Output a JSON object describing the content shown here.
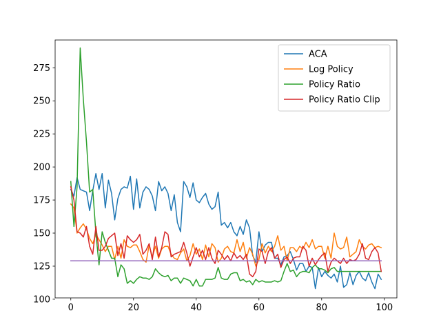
{
  "chart_data": {
    "type": "line",
    "title": "",
    "xlabel": "",
    "ylabel": "",
    "xlim": [
      -5,
      104
    ],
    "ylim": [
      101,
      296
    ],
    "xticks": [
      0,
      20,
      40,
      60,
      80,
      100
    ],
    "yticks": [
      100,
      125,
      150,
      175,
      200,
      225,
      250,
      275
    ],
    "grid": false,
    "legend_position": "top-right",
    "x": [
      0,
      1,
      2,
      3,
      4,
      5,
      6,
      7,
      8,
      9,
      10,
      11,
      12,
      13,
      14,
      15,
      16,
      17,
      18,
      19,
      20,
      21,
      22,
      23,
      24,
      25,
      26,
      27,
      28,
      29,
      30,
      31,
      32,
      33,
      34,
      35,
      36,
      37,
      38,
      39,
      40,
      41,
      42,
      43,
      44,
      45,
      46,
      47,
      48,
      49,
      50,
      51,
      52,
      53,
      54,
      55,
      56,
      57,
      58,
      59,
      60,
      61,
      62,
      63,
      64,
      65,
      66,
      67,
      68,
      69,
      70,
      71,
      72,
      73,
      74,
      75,
      76,
      77,
      78,
      79,
      80,
      81,
      82,
      83,
      84,
      85,
      86,
      87,
      88,
      89,
      90,
      91,
      92,
      93,
      94,
      95,
      96,
      97,
      98,
      99
    ],
    "series": [
      {
        "name": "ACA",
        "color": "#1f77b4",
        "values": [
          183,
          178,
          192,
          183,
          182,
          181,
          167,
          182,
          195,
          183,
          195,
          169,
          190,
          180,
          160,
          176,
          183,
          185,
          184,
          193,
          168,
          191,
          169,
          181,
          185,
          183,
          178,
          167,
          189,
          182,
          185,
          180,
          167,
          179,
          158,
          151,
          189,
          185,
          177,
          188,
          175,
          173,
          177,
          180,
          172,
          168,
          170,
          181,
          156,
          158,
          154,
          158,
          151,
          148,
          155,
          149,
          160,
          154,
          133,
          128,
          151,
          136,
          141,
          143,
          143,
          131,
          131,
          126,
          132,
          133,
          136,
          130,
          122,
          127,
          127,
          121,
          125,
          124,
          108,
          124,
          117,
          121,
          118,
          116,
          119,
          113,
          125,
          109,
          111,
          120,
          111,
          118,
          121,
          116,
          114,
          120,
          113,
          108,
          119,
          115
        ]
      },
      {
        "name": "Log Policy",
        "color": "#ff7f0e",
        "values": [
          172,
          169,
          150,
          154,
          157,
          153,
          146,
          142,
          149,
          145,
          141,
          136,
          140,
          140,
          130,
          140,
          131,
          145,
          140,
          139,
          141,
          141,
          136,
          130,
          128,
          141,
          132,
          140,
          131,
          138,
          140,
          140,
          134,
          131,
          130,
          135,
          138,
          129,
          133,
          142,
          134,
          138,
          130,
          141,
          132,
          142,
          139,
          128,
          131,
          138,
          140,
          136,
          135,
          145,
          136,
          143,
          131,
          139,
          134,
          125,
          130,
          142,
          135,
          140,
          136,
          140,
          148,
          137,
          140,
          129,
          139,
          139,
          136,
          140,
          138,
          143,
          139,
          145,
          138,
          140,
          140,
          131,
          140,
          131,
          150,
          140,
          138,
          139,
          147,
          132,
          134,
          136,
          145,
          140,
          138,
          141,
          142,
          139,
          140,
          139
        ]
      },
      {
        "name": "Policy Ratio",
        "color": "#2ca02c",
        "values": [
          189,
          155,
          185,
          290,
          251,
          219,
          181,
          183,
          150,
          126,
          151,
          143,
          137,
          131,
          131,
          117,
          126,
          123,
          112,
          114,
          112,
          115,
          117,
          116,
          116,
          115,
          117,
          123,
          120,
          118,
          117,
          118,
          114,
          116,
          116,
          112,
          116,
          115,
          114,
          110,
          115,
          110,
          110,
          115,
          115,
          115,
          116,
          124,
          116,
          115,
          115,
          119,
          120,
          120,
          114,
          115,
          113,
          114,
          111,
          115,
          113,
          114,
          113,
          113,
          113,
          114,
          113,
          114,
          121,
          127,
          121,
          122,
          117,
          120,
          121,
          121,
          120,
          124,
          126,
          123,
          123,
          122,
          120,
          123,
          124,
          121,
          121,
          121,
          121,
          121,
          121,
          121,
          121,
          121,
          121,
          121,
          121,
          121,
          121,
          121
        ]
      },
      {
        "name": "Policy Ratio Clip",
        "color": "#d62728",
        "values": [
          185,
          175,
          151,
          150,
          147,
          155,
          140,
          134,
          155,
          137,
          137,
          140,
          146,
          148,
          150,
          133,
          142,
          131,
          148,
          145,
          143,
          145,
          149,
          134,
          137,
          142,
          130,
          147,
          132,
          139,
          151,
          149,
          132,
          134,
          135,
          136,
          143,
          135,
          125,
          132,
          139,
          132,
          137,
          130,
          139,
          131,
          127,
          137,
          134,
          130,
          133,
          129,
          135,
          131,
          133,
          130,
          134,
          119,
          117,
          121,
          138,
          136,
          127,
          136,
          139,
          131,
          134,
          124,
          130,
          132,
          127,
          131,
          132,
          132,
          140,
          137,
          125,
          131,
          126,
          130,
          133,
          135,
          121,
          128,
          131,
          129,
          127,
          131,
          127,
          130,
          129,
          130,
          134,
          142,
          131,
          130,
          136,
          139,
          135,
          121
        ]
      },
      {
        "name": "",
        "color": "#9467bd",
        "values": [
          129,
          129,
          129,
          129,
          129,
          129,
          129,
          129,
          129,
          129,
          129,
          129,
          129,
          129,
          129,
          129,
          129,
          129,
          129,
          129,
          129,
          129,
          129,
          129,
          129,
          129,
          129,
          129,
          129,
          129,
          129,
          129,
          129,
          129,
          129,
          129,
          129,
          129,
          129,
          129,
          129,
          129,
          129,
          129,
          129,
          129,
          129,
          129,
          129,
          129,
          129,
          129,
          129,
          129,
          129,
          129,
          129,
          129,
          129,
          129,
          129,
          129,
          129,
          129,
          129,
          129,
          129,
          129,
          129,
          129,
          129,
          129,
          129,
          129,
          129,
          129,
          129,
          129,
          129,
          129,
          129,
          129,
          129,
          129,
          129,
          129,
          129,
          129,
          129,
          129,
          129,
          129,
          129,
          129,
          129,
          129,
          129,
          129,
          129,
          129
        ]
      }
    ]
  }
}
